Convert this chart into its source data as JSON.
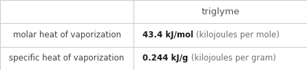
{
  "title": "triglyme",
  "rows": [
    {
      "label": "molar heat of vaporization",
      "value_bold": "43.4 kJ/mol",
      "value_light": " (kilojoules per mole)"
    },
    {
      "label": "specific heat of vaporization",
      "value_bold": "0.244 kJ/g",
      "value_light": " (kilojoules per gram)"
    }
  ],
  "col_split": 0.435,
  "background_color": "#ffffff",
  "border_color": "#c8c8c8",
  "text_color_label": "#404040",
  "text_color_bold": "#1a1a1a",
  "text_color_light": "#707070",
  "title_color": "#505050",
  "font_size_title": 9.5,
  "font_size_label": 8.5,
  "font_size_value": 8.5
}
